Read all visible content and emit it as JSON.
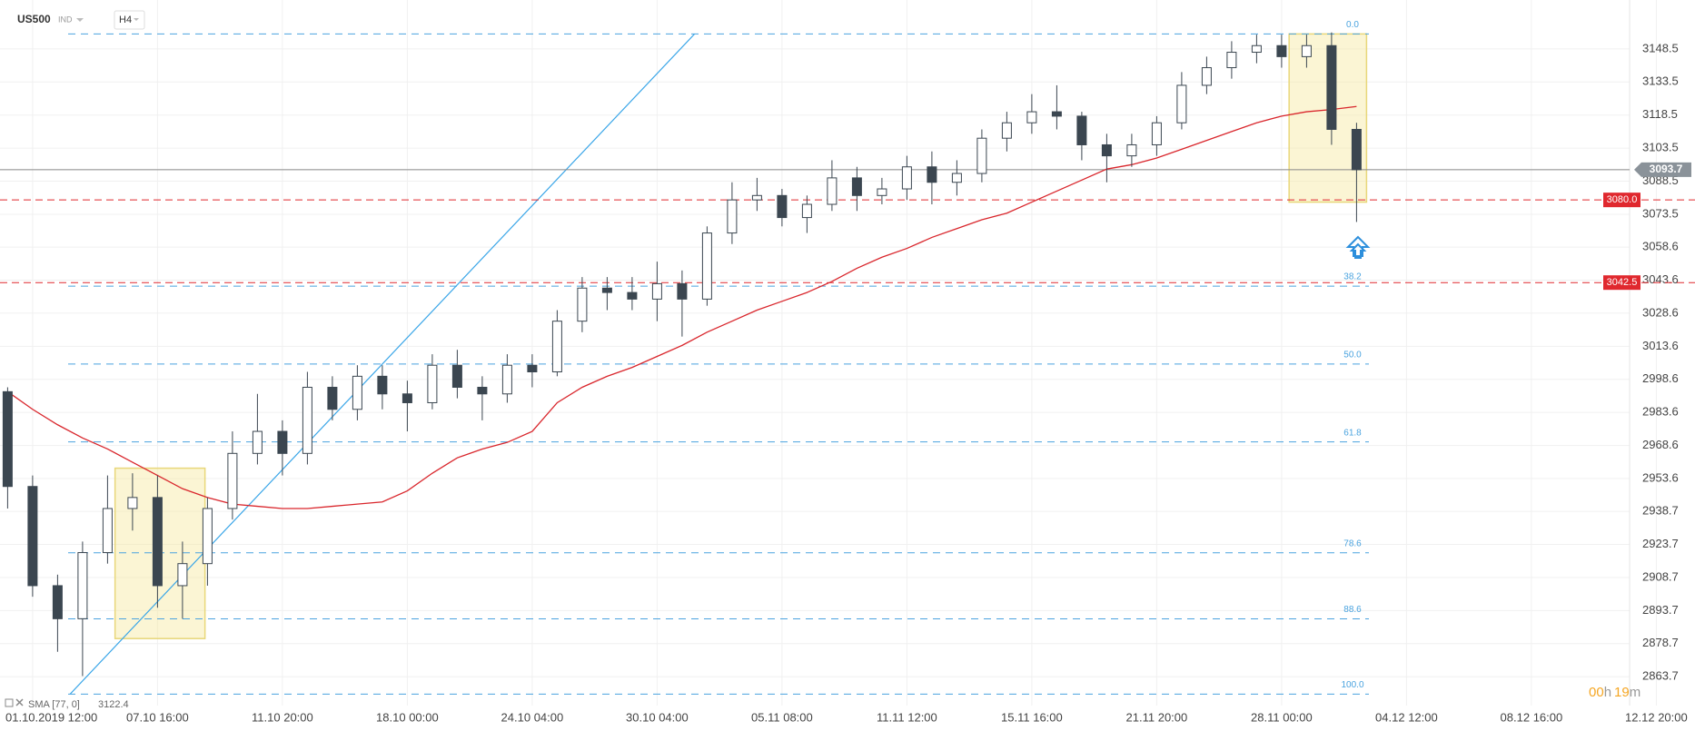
{
  "header": {
    "symbol": "US500",
    "market": "IND",
    "interval": "H4"
  },
  "chart_data": {
    "type": "candlestick",
    "categories": [
      null,
      "01.10.2019 12:00",
      null,
      null,
      null,
      null,
      "07.10 16:00",
      null,
      null,
      null,
      null,
      "11.10 20:00",
      null,
      null,
      null,
      null,
      "18.10 00:00",
      null,
      null,
      null,
      null,
      "24.10 04:00",
      null,
      null,
      null,
      null,
      "30.10 04:00",
      null,
      null,
      null,
      null,
      "05.11 08:00",
      null,
      null,
      null,
      null,
      "11.11 12:00",
      null,
      null,
      null,
      null,
      "15.11 16:00",
      null,
      null,
      null,
      null,
      "21.11 20:00",
      null,
      null,
      null,
      null,
      "28.11 00:00",
      null,
      null,
      null,
      null,
      "04.12 12:00",
      null,
      null,
      null,
      null,
      "08.12 16:00",
      null,
      null,
      null,
      null,
      "12.12 20:00"
    ],
    "open": [
      2993,
      2950,
      2905,
      2890,
      2920,
      2940,
      2945,
      2905,
      2915,
      2940,
      2965,
      2975,
      2965,
      2995,
      2985,
      3000,
      2992,
      2988,
      3005,
      2995,
      2992,
      3005,
      3002,
      3025,
      3040,
      3038,
      3035,
      3042,
      3035,
      3065,
      3080,
      3082,
      3072,
      3078,
      3090,
      3082,
      3085,
      3095,
      3088,
      3092,
      3108,
      3115,
      3120,
      3118,
      3105,
      3100,
      3105,
      3115,
      3132,
      3140,
      3147,
      3150,
      3145,
      3150,
      3112,
      null,
      null,
      null,
      null,
      null,
      null,
      null,
      null,
      null,
      null,
      null,
      null
    ],
    "high": [
      2995,
      2955,
      2910,
      2925,
      2955,
      2956,
      2955,
      2925,
      2945,
      2975,
      2992,
      2980,
      3002,
      3000,
      3005,
      3005,
      2998,
      3010,
      3012,
      3000,
      3010,
      3010,
      3030,
      3045,
      3045,
      3045,
      3052,
      3048,
      3068,
      3088,
      3090,
      3085,
      3082,
      3098,
      3095,
      3090,
      3100,
      3102,
      3098,
      3112,
      3120,
      3128,
      3132,
      3120,
      3110,
      3110,
      3118,
      3138,
      3145,
      3152,
      3155,
      3155,
      3155,
      3156,
      3115,
      null,
      null,
      null,
      null,
      null,
      null,
      null,
      null,
      null,
      null,
      null,
      null
    ],
    "low": [
      2940,
      2900,
      2875,
      2864,
      2915,
      2930,
      2895,
      2890,
      2905,
      2935,
      2960,
      2955,
      2960,
      2980,
      2980,
      2985,
      2975,
      2985,
      2990,
      2980,
      2988,
      2995,
      3000,
      3020,
      3030,
      3030,
      3025,
      3018,
      3032,
      3060,
      3075,
      3068,
      3065,
      3075,
      3075,
      3078,
      3080,
      3078,
      3082,
      3088,
      3102,
      3110,
      3112,
      3098,
      3088,
      3095,
      3100,
      3112,
      3128,
      3135,
      3142,
      3140,
      3140,
      3105,
      3070,
      null,
      null,
      null,
      null,
      null,
      null,
      null,
      null,
      null,
      null,
      null,
      null
    ],
    "close": [
      2950,
      2905,
      2890,
      2920,
      2940,
      2945,
      2905,
      2915,
      2940,
      2965,
      2975,
      2965,
      2995,
      2985,
      3000,
      2992,
      2988,
      3005,
      2995,
      2992,
      3005,
      3002,
      3025,
      3040,
      3038,
      3035,
      3042,
      3035,
      3065,
      3080,
      3082,
      3072,
      3078,
      3090,
      3082,
      3085,
      3095,
      3088,
      3092,
      3108,
      3115,
      3120,
      3118,
      3105,
      3100,
      3105,
      3115,
      3132,
      3140,
      3147,
      3150,
      3145,
      3150,
      3112,
      3093.7,
      null,
      null,
      null,
      null,
      null,
      null,
      null,
      null,
      null,
      null,
      null,
      null
    ],
    "up_color": "#ffffff",
    "down_color": "#3b4650",
    "wick_color": "#3b4650",
    "indicator": {
      "name": "SMA [77, 0]",
      "color": "#d9262c",
      "values": [
        2993,
        2985,
        2978,
        2972,
        2967,
        2961,
        2955,
        2949,
        2945,
        2942,
        2941,
        2940,
        2940,
        2941,
        2942,
        2943,
        2948,
        2956,
        2963,
        2967,
        2970,
        2975,
        2988,
        2995,
        3000,
        3004,
        3009,
        3014,
        3020,
        3025,
        3030,
        3034,
        3038,
        3043,
        3049,
        3054,
        3058,
        3063,
        3067,
        3071,
        3074,
        3079,
        3084,
        3089,
        3094,
        3096,
        3099,
        3103,
        3107,
        3111,
        3115,
        3118,
        3120,
        3121,
        3122.4,
        null,
        null,
        null,
        null,
        null,
        null,
        null,
        null,
        null,
        null,
        null,
        null
      ]
    },
    "ylim": [
      2850.6,
      3170.7
    ],
    "yticks": [
      2863.7,
      2878.7,
      2893.7,
      2908.7,
      2923.7,
      2938.7,
      2953.6,
      2968.6,
      2983.6,
      2998.6,
      3013.6,
      3028.6,
      3043.6,
      3058.6,
      3073.5,
      3088.5,
      3103.5,
      3118.5,
      3133.5,
      3148.5
    ],
    "grid": true,
    "price": 3093.7,
    "levels": [
      {
        "value": 3080,
        "label": "3080.0"
      },
      {
        "value": 3042.5,
        "label": "3042.5"
      }
    ],
    "level_color": "#e0282e",
    "fibonacci": {
      "high": 3155.3,
      "low": 2855.8,
      "color": "#4aa3df",
      "ratios": [
        {
          "value": 0,
          "label": "0.0"
        },
        {
          "value": 38.2,
          "label": "38.2"
        },
        {
          "value": 50,
          "label": "50.0"
        },
        {
          "value": 61.8,
          "label": "61.8"
        },
        {
          "value": 78.6,
          "label": "78.6"
        },
        {
          "value": 88.6,
          "label": "88.6"
        },
        {
          "value": 100,
          "label": "100.0"
        }
      ]
    },
    "trend_line": {
      "x": [
        2.5,
        27.5
      ],
      "y": [
        2855.8,
        3155.3
      ],
      "color": "#3aa6e8"
    },
    "zones": [
      {
        "x": [
          4.3,
          7.9
        ],
        "y": [
          2881,
          2958.3
        ]
      },
      {
        "x": [
          51.3,
          54.4
        ],
        "y": [
          3079,
          3155.3
        ]
      }
    ],
    "timer": [
      "00",
      "h",
      "19",
      "m"
    ]
  }
}
